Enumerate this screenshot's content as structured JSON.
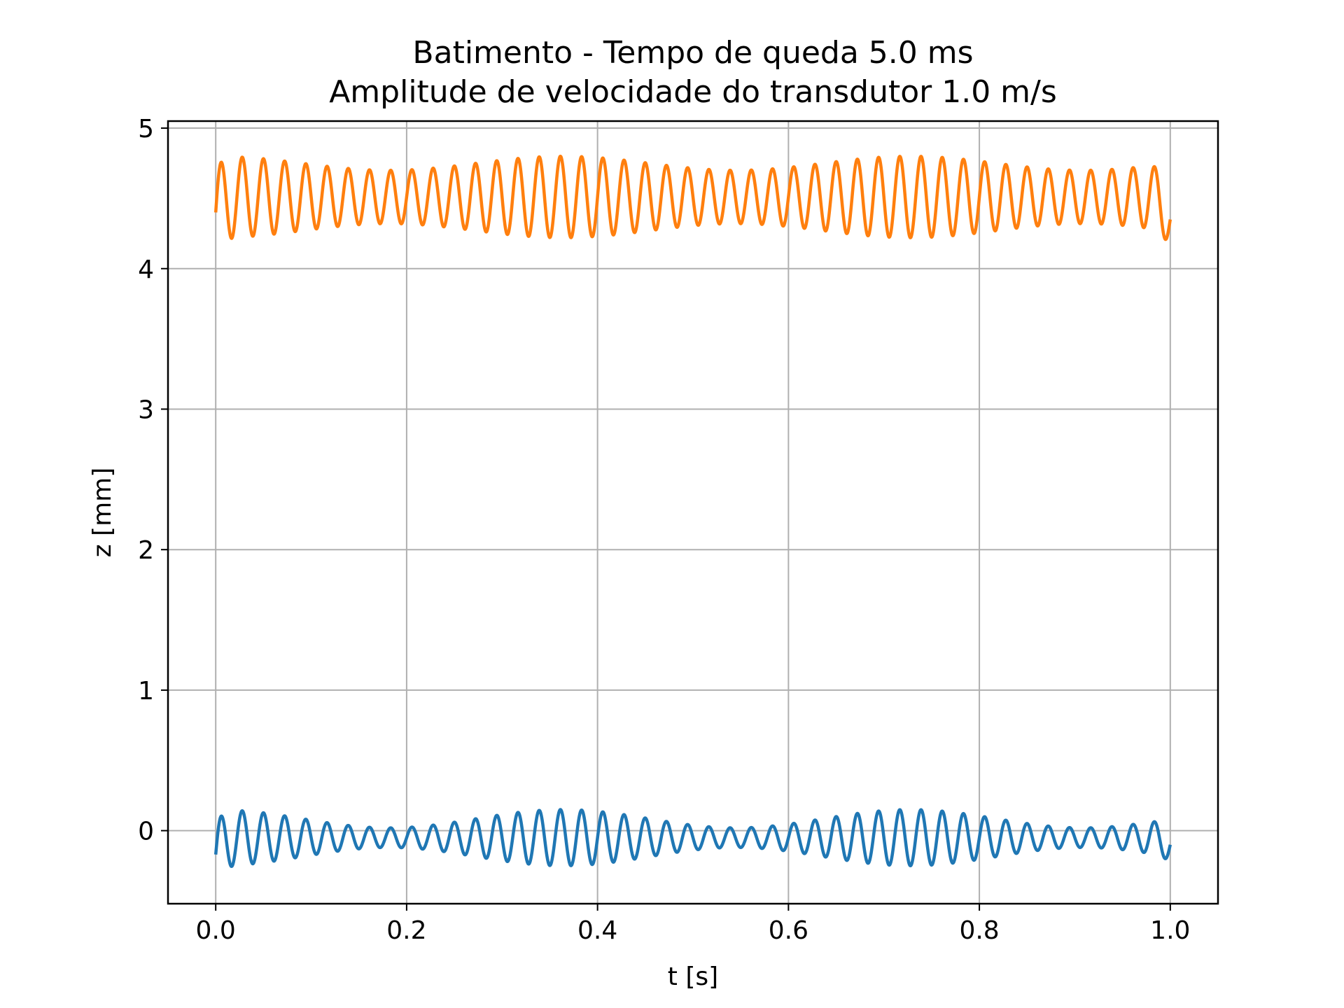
{
  "chart_data": {
    "type": "line",
    "title_line1": "Batimento - Tempo de queda 5.0 ms",
    "title_line2": "Amplitude de velocidade do transdutor 1.0 m/s",
    "xlabel": "t [s]",
    "ylabel": "z [mm]",
    "xlim": [
      -0.05,
      1.05
    ],
    "ylim": [
      -0.52,
      5.05
    ],
    "xticks": [
      0.0,
      0.2,
      0.4,
      0.6,
      0.8,
      1.0
    ],
    "xtick_labels": [
      "0.0",
      "0.2",
      "0.4",
      "0.6",
      "0.8",
      "1.0"
    ],
    "yticks": [
      0,
      1,
      2,
      3,
      4,
      5
    ],
    "ytick_labels": [
      "0",
      "1",
      "2",
      "3",
      "4",
      "5"
    ],
    "grid": true,
    "legend": "none",
    "series": [
      {
        "color": "#1f77b4",
        "t_range": [
          0.0,
          1.0
        ],
        "samples": 3000,
        "offset_mm": -0.05,
        "carrier_frequency_hz": 45,
        "envelope_frequency_hz": 2.75,
        "envelope_peak_mm": 0.2,
        "envelope_min_mm": 0.07,
        "start_value_mm": -0.17,
        "end_value_mm": -0.1
      },
      {
        "color": "#ff7f0e",
        "t_range": [
          0.0,
          1.0
        ],
        "samples": 3000,
        "offset_mm": 4.51,
        "carrier_frequency_hz": 45,
        "envelope_frequency_hz": 2.75,
        "envelope_peak_mm": 0.29,
        "envelope_min_mm": 0.19,
        "start_value_mm": 4.4,
        "end_value_mm": 4.35
      }
    ]
  }
}
